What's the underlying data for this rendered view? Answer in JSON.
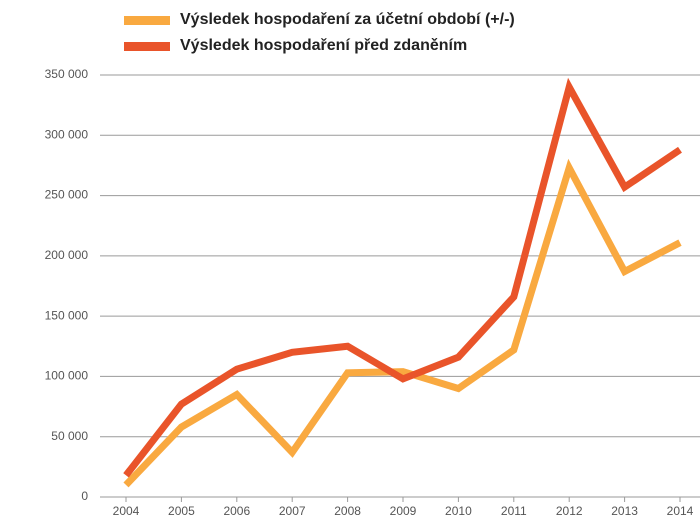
{
  "chart_data": {
    "type": "line",
    "categories": [
      "2004",
      "2005",
      "2006",
      "2007",
      "2008",
      "2009",
      "2010",
      "2011",
      "2012",
      "2013",
      "2014"
    ],
    "series": [
      {
        "name": "Výsledek hospodaření za účetní období (+/-)",
        "color": "#f9a940",
        "values": [
          10000,
          58000,
          85000,
          37000,
          103000,
          104000,
          90000,
          122000,
          273000,
          187000,
          211000
        ]
      },
      {
        "name": "Výsledek hospodaření před zdaněním",
        "color": "#e9542a",
        "values": [
          18000,
          77000,
          106000,
          120000,
          125000,
          98000,
          116000,
          166000,
          340000,
          257000,
          288000
        ]
      }
    ],
    "ylim": [
      0,
      350000
    ],
    "yticks": [
      0,
      {
        "value": 50000,
        "label": "50 000"
      },
      {
        "value": 100000,
        "label": "100 000"
      },
      {
        "value": 150000,
        "label": "150 000"
      },
      {
        "value": 200000,
        "label": "200 000"
      },
      {
        "value": 250000,
        "label": "250 000"
      },
      {
        "value": 300000,
        "label": "300 000"
      },
      {
        "value": 350000,
        "label": "350 000"
      }
    ],
    "grid": true
  }
}
